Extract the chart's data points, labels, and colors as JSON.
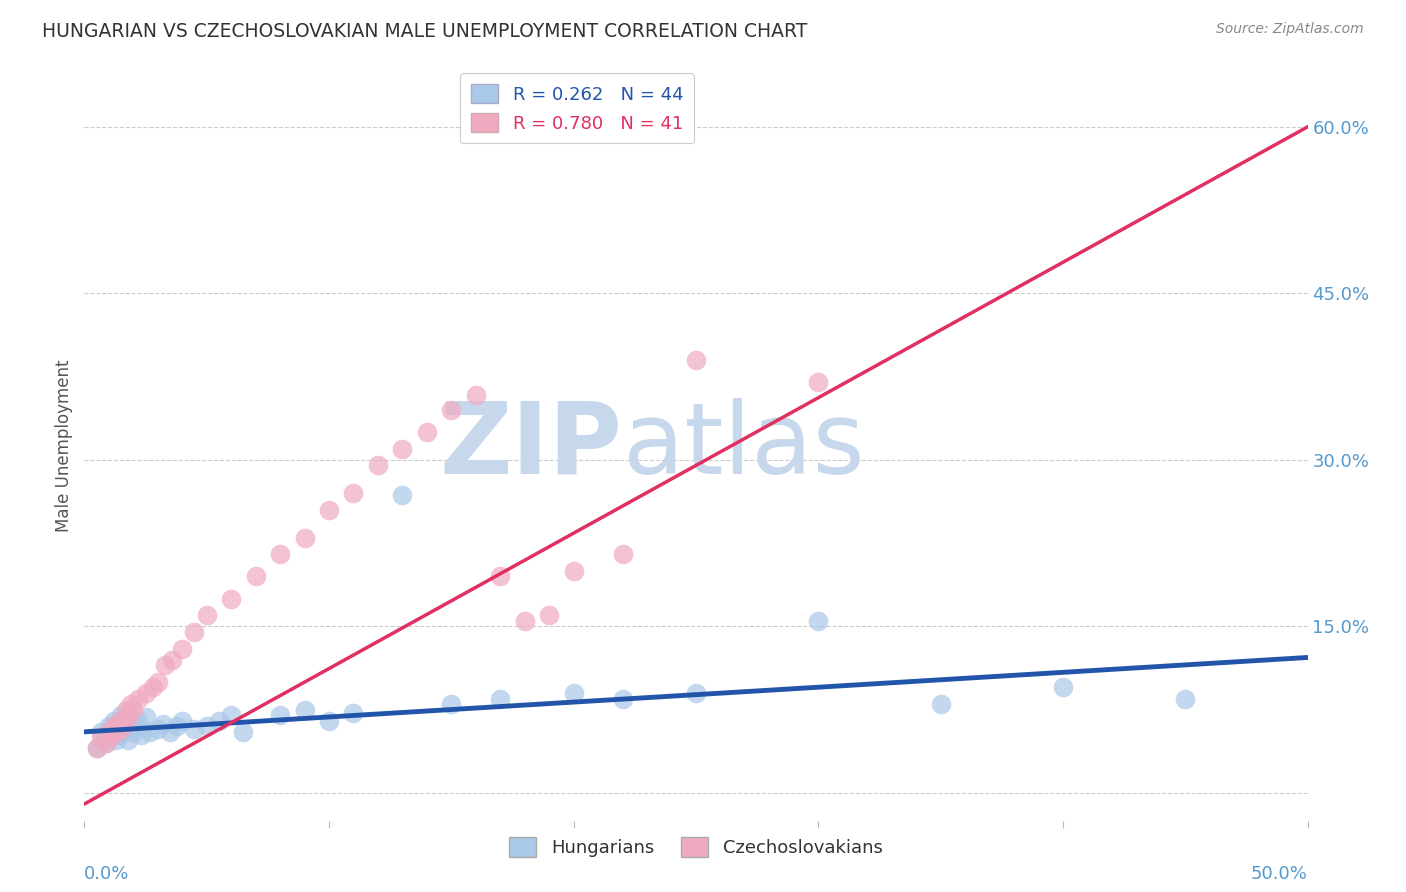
{
  "title": "HUNGARIAN VS CZECHOSLOVAKIAN MALE UNEMPLOYMENT CORRELATION CHART",
  "source": "Source: ZipAtlas.com",
  "ylabel": "Male Unemployment",
  "yticks": [
    0.0,
    0.15,
    0.3,
    0.45,
    0.6
  ],
  "ytick_labels": [
    "",
    "15.0%",
    "30.0%",
    "45.0%",
    "60.0%"
  ],
  "xlim": [
    0.0,
    0.5
  ],
  "ylim": [
    -0.025,
    0.65
  ],
  "hungarian_R": "0.262",
  "hungarian_N": "44",
  "czechoslovakian_R": "0.780",
  "czechoslovakian_N": "41",
  "hungarian_color": "#aac8e8",
  "hungarian_line_color": "#2255aa",
  "czechoslovakian_color": "#f0aac0",
  "czechoslovakian_line_color": "#e03060",
  "watermark_zip": "ZIP",
  "watermark_atlas": "atlas",
  "watermark_color": "#c8d8ec",
  "hungarian_scatter_x": [
    0.005,
    0.007,
    0.009,
    0.01,
    0.011,
    0.012,
    0.013,
    0.014,
    0.015,
    0.015,
    0.016,
    0.017,
    0.018,
    0.019,
    0.02,
    0.021,
    0.022,
    0.023,
    0.025,
    0.027,
    0.03,
    0.032,
    0.035,
    0.038,
    0.04,
    0.045,
    0.05,
    0.055,
    0.06,
    0.065,
    0.08,
    0.09,
    0.1,
    0.11,
    0.13,
    0.15,
    0.17,
    0.2,
    0.22,
    0.25,
    0.3,
    0.35,
    0.4,
    0.45
  ],
  "hungarian_scatter_y": [
    0.04,
    0.055,
    0.045,
    0.06,
    0.05,
    0.065,
    0.048,
    0.052,
    0.058,
    0.07,
    0.055,
    0.062,
    0.048,
    0.058,
    0.055,
    0.06,
    0.065,
    0.052,
    0.068,
    0.055,
    0.058,
    0.062,
    0.055,
    0.06,
    0.065,
    0.058,
    0.06,
    0.065,
    0.07,
    0.055,
    0.07,
    0.075,
    0.065,
    0.072,
    0.268,
    0.08,
    0.085,
    0.09,
    0.085,
    0.09,
    0.155,
    0.08,
    0.095,
    0.085
  ],
  "czechoslovakian_scatter_x": [
    0.005,
    0.007,
    0.009,
    0.01,
    0.011,
    0.012,
    0.013,
    0.014,
    0.015,
    0.016,
    0.017,
    0.018,
    0.019,
    0.02,
    0.022,
    0.025,
    0.028,
    0.03,
    0.033,
    0.036,
    0.04,
    0.045,
    0.05,
    0.06,
    0.07,
    0.08,
    0.09,
    0.1,
    0.11,
    0.12,
    0.13,
    0.14,
    0.15,
    0.16,
    0.17,
    0.18,
    0.19,
    0.2,
    0.22,
    0.25,
    0.3
  ],
  "czechoslovakian_scatter_y": [
    0.04,
    0.05,
    0.045,
    0.055,
    0.05,
    0.06,
    0.055,
    0.065,
    0.058,
    0.065,
    0.075,
    0.068,
    0.08,
    0.075,
    0.085,
    0.09,
    0.095,
    0.1,
    0.115,
    0.12,
    0.13,
    0.145,
    0.16,
    0.175,
    0.195,
    0.215,
    0.23,
    0.255,
    0.27,
    0.295,
    0.31,
    0.325,
    0.345,
    0.358,
    0.195,
    0.155,
    0.16,
    0.2,
    0.215,
    0.39,
    0.37
  ],
  "hungarian_line_y0": 0.055,
  "hungarian_line_y1": 0.122,
  "czechoslovakian_line_y0": -0.01,
  "czechoslovakian_line_y1": 0.6,
  "background_color": "#ffffff",
  "grid_color": "#cccccc"
}
